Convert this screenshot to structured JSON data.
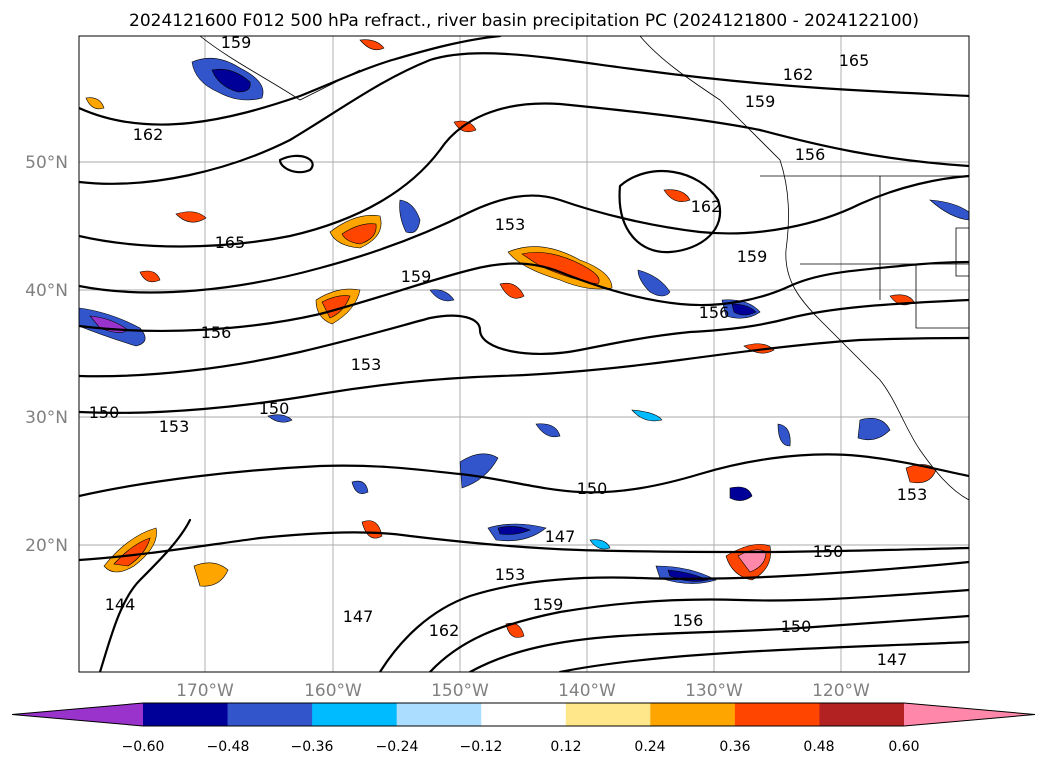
{
  "title": "2024121600 F012 500 hPa refract., river basin precipitation PC (2024121800 - 2024122100)",
  "map": {
    "lat_labels": [
      "50°N",
      "40°N",
      "30°N",
      "20°N"
    ],
    "lon_labels": [
      "170°W",
      "160°W",
      "150°W",
      "140°W",
      "130°W",
      "120°W"
    ],
    "contour_labels": [
      "159",
      "165",
      "162",
      "159",
      "162",
      "156",
      "165",
      "153",
      "162",
      "159",
      "156",
      "153",
      "150",
      "153",
      "150",
      "159",
      "156",
      "150",
      "147",
      "153",
      "144",
      "147",
      "162",
      "159",
      "156",
      "150",
      "147",
      "150",
      "153"
    ]
  },
  "colorbar": {
    "ticks": [
      "−0.60",
      "−0.48",
      "−0.36",
      "−0.24",
      "−0.12",
      "0.12",
      "0.24",
      "0.36",
      "0.48",
      "0.60"
    ],
    "colors": [
      "#9933cc",
      "#000099",
      "#3355cc",
      "#00bbff",
      "#aaddff",
      "#ffffff",
      "#ffe78a",
      "#ffa500",
      "#ff4500",
      "#b22222",
      "#ff88aa"
    ]
  },
  "chart_data": {
    "type": "heatmap",
    "title": "2024121600 F012 500 hPa refract., river basin precipitation PC (2024121800 - 2024122100)",
    "contour_variable": "500 hPa refractivity",
    "contour_levels": [
      144,
      147,
      150,
      153,
      156,
      159,
      162,
      165
    ],
    "shaded_variable": "river basin precipitation PC",
    "color_levels": [
      -0.6,
      -0.48,
      -0.36,
      -0.24,
      -0.12,
      0.12,
      0.24,
      0.36,
      0.48,
      0.6
    ],
    "colorbar_extend": "both",
    "lon_ticks": [
      "170°W",
      "160°W",
      "150°W",
      "140°W",
      "130°W",
      "120°W"
    ],
    "lat_ticks": [
      "50°N",
      "40°N",
      "30°N",
      "20°N"
    ],
    "grid": true
  }
}
